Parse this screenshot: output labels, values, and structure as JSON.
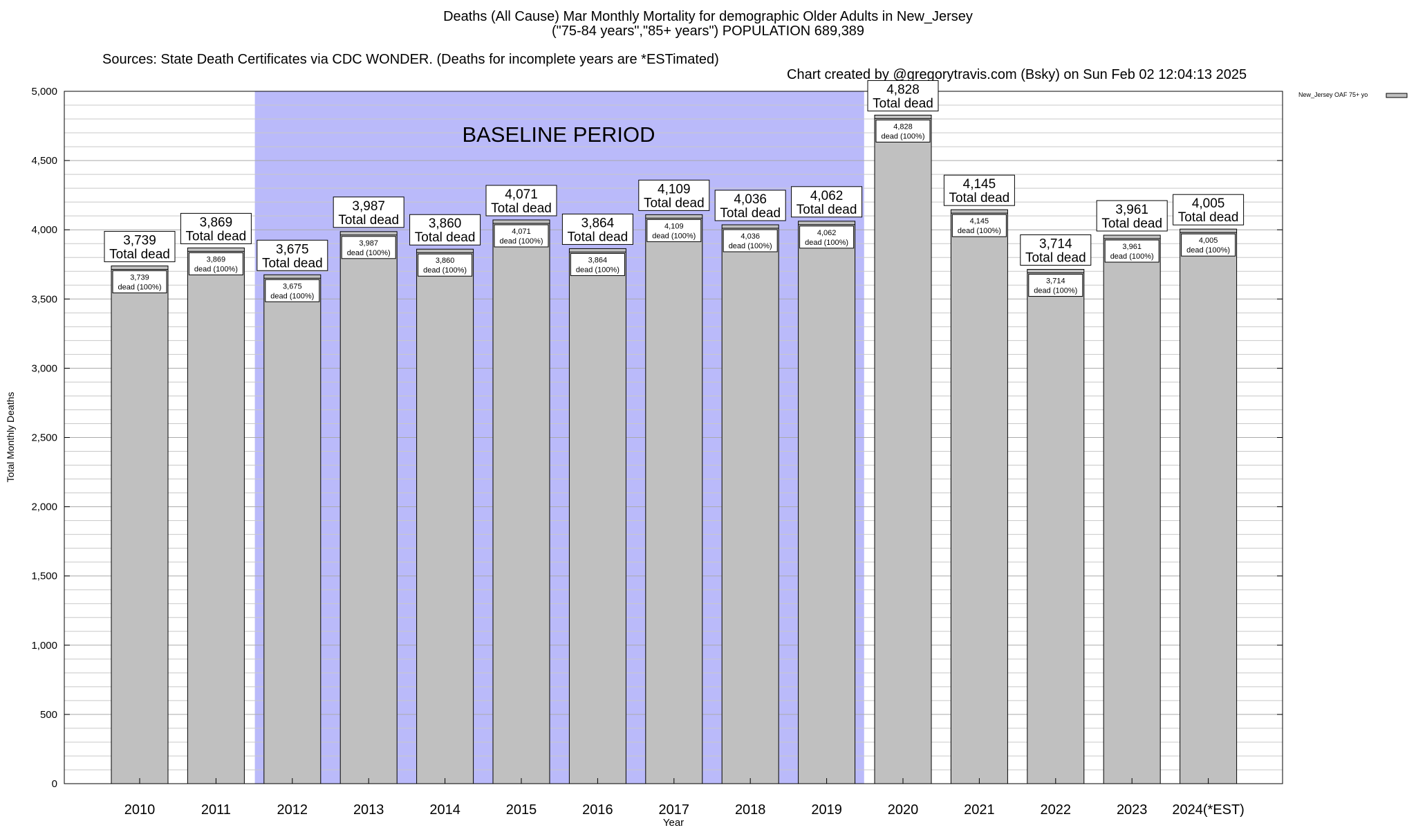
{
  "header": {
    "title": "Deaths (All Cause) Mar Monthly Mortality for demographic Older Adults in New_Jersey",
    "subtitle": "(\"75-84 years\",\"85+ years\") POPULATION 689,389",
    "sources": "Sources: State Death Certificates via CDC WONDER. (Deaths for incomplete years are *ESTimated)",
    "credit": "Chart created by @gregorytravis.com (Bsky) on Sun Feb 02 12:04:13 2025"
  },
  "chart_data": {
    "type": "bar",
    "xlabel": "Year",
    "ylabel": "Total Monthly Deaths",
    "ylim": [
      0,
      5000
    ],
    "yticks": [
      0,
      500,
      1000,
      1500,
      2000,
      2500,
      3000,
      3500,
      4000,
      4500,
      5000
    ],
    "ytick_labels": [
      "0",
      "500",
      "1,000",
      "1,500",
      "2,000",
      "2,500",
      "3,000",
      "3,500",
      "4,000",
      "4,500",
      "5,000"
    ],
    "grid": true,
    "legend": {
      "label": "New_Jersey OAF 75+ yo",
      "placement": "top-right"
    },
    "baseline_annotation": "BASELINE PERIOD",
    "baseline_range": [
      "2012",
      "2019"
    ],
    "colors": {
      "bar": "#c0c0c0",
      "baseline_band": "#babafa",
      "bar_stroke": "#000000"
    },
    "total_suffix": "Total dead",
    "inner_suffix": "dead (100%)",
    "categories": [
      "2010",
      "2011",
      "2012",
      "2013",
      "2014",
      "2015",
      "2016",
      "2017",
      "2018",
      "2019",
      "2020",
      "2021",
      "2022",
      "2023",
      "2024(*EST)"
    ],
    "values": [
      3739,
      3869,
      3675,
      3987,
      3860,
      4071,
      3864,
      4109,
      4036,
      4062,
      4828,
      4145,
      3714,
      3961,
      4005
    ],
    "value_labels": [
      "3,739",
      "3,869",
      "3,675",
      "3,987",
      "3,860",
      "4,071",
      "3,864",
      "4,109",
      "4,036",
      "4,062",
      "4,828",
      "4,145",
      "3,714",
      "3,961",
      "4,005"
    ]
  }
}
